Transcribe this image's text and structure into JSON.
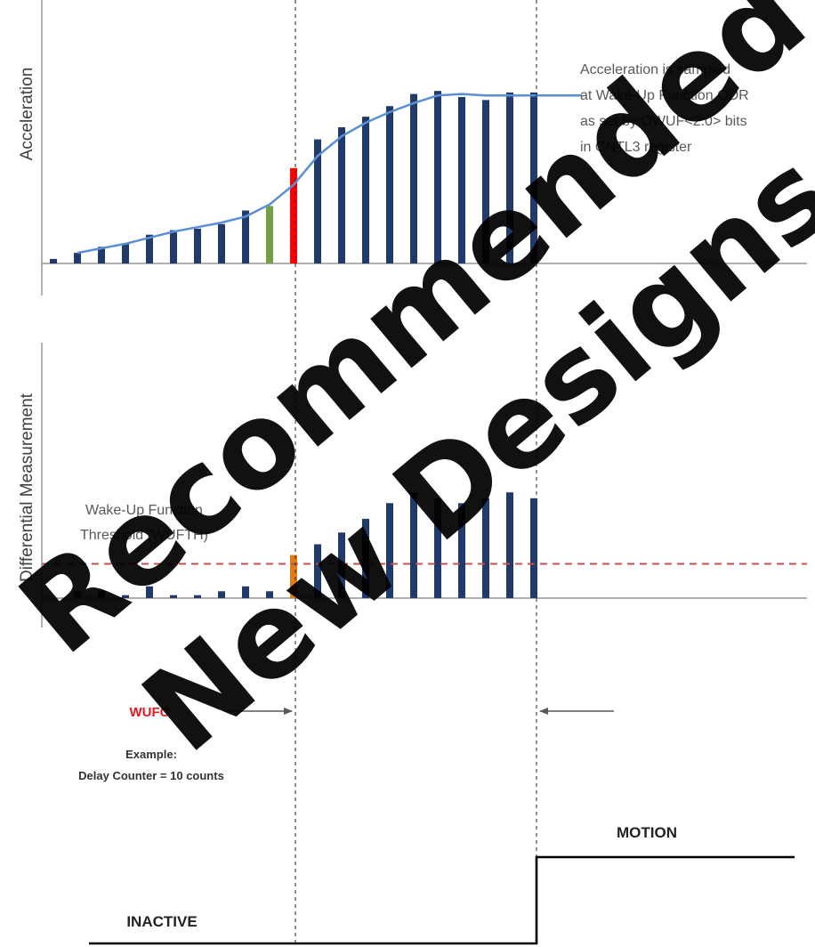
{
  "acceleration_axis_label": "Acceleration",
  "differential_axis_label": "Differential Measurement",
  "sampling_note_lines": [
    "Acceleration is sampled",
    "at Wake-Up Function ODR",
    "as set by OWUF<2:0> bits",
    "in CNTL3 register"
  ],
  "threshold_label_lines": [
    "Wake-Up Function",
    "Threshold (WUFTH)"
  ],
  "wufc_label": "WUFC",
  "example_lines": [
    "Example:",
    "Delay Counter = 10 counts"
  ],
  "state_motion": "MOTION",
  "state_inactive": "INACTIVE",
  "watermark_lines": [
    "Recommended",
    "New Designs"
  ],
  "colors": {
    "bar": "#1f3a6b",
    "curve": "#5b8fd4",
    "pre_trigger_bar": "#70a03f",
    "trigger_bar": "#ff0000",
    "trigger_diff_bar": "#e07c1a",
    "threshold_line": "#c0504d",
    "arrow": "#595959",
    "state_line": "#000000"
  },
  "acceleration_samples": [
    0.03,
    0.07,
    0.11,
    0.13,
    0.19,
    0.22,
    0.23,
    0.26,
    0.35,
    0.38,
    0.63,
    0.82,
    0.9,
    0.97,
    1.04,
    1.12,
    1.14,
    1.1,
    1.08,
    1.13,
    1.13
  ],
  "acceleration_curve": [
    0.07,
    0.1,
    0.13,
    0.17,
    0.21,
    0.24,
    0.27,
    0.31,
    0.39,
    0.52,
    0.71,
    0.84,
    0.93,
    1.0,
    1.06,
    1.11,
    1.12,
    1.11,
    1.11,
    1.11,
    1.11,
    1.11
  ],
  "differential_samples": [
    0.07,
    0.07,
    0.03,
    0.12,
    0.03,
    0.03,
    0.07,
    0.12,
    0.07,
    0.44,
    0.55,
    0.67,
    0.81,
    0.97,
    1.08,
    1.02,
    0.97,
    1.02,
    1.08,
    1.02
  ],
  "threshold_level": 0.35,
  "trigger_sample_index": 10,
  "delay_count": 10
}
